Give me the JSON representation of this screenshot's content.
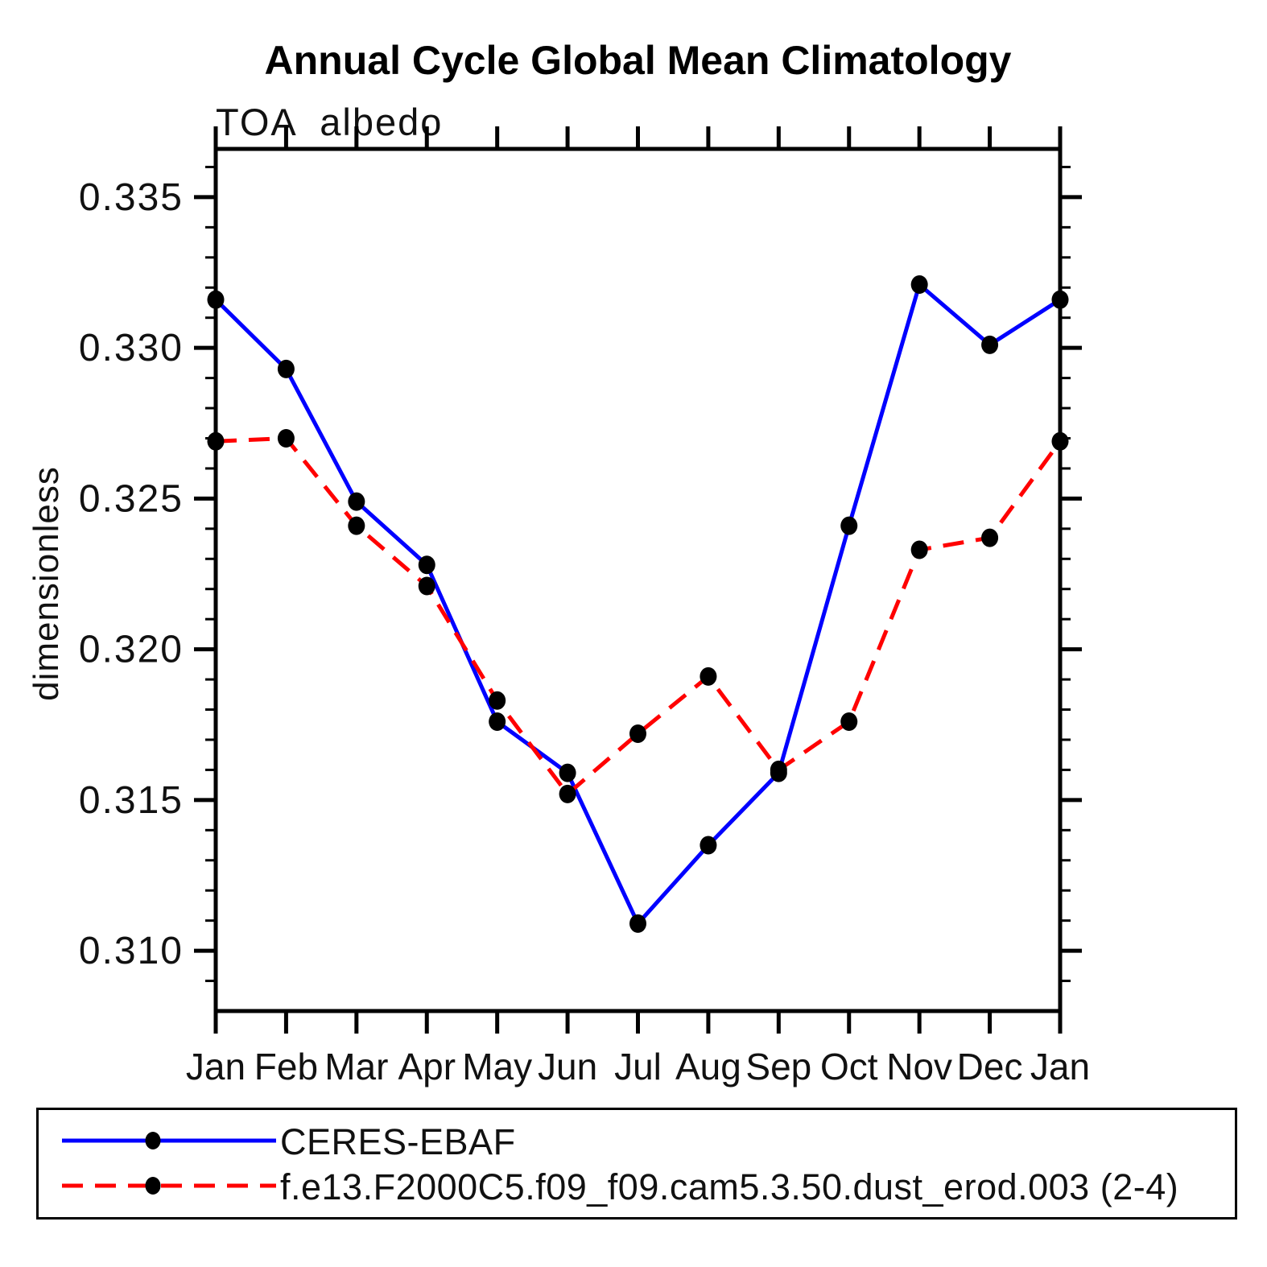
{
  "title": "Annual Cycle Global Mean Climatology",
  "subtitle": "TOA  albedo",
  "ylabel": "dimensionless",
  "chart_data": {
    "type": "line",
    "categories": [
      "Jan",
      "Feb",
      "Mar",
      "Apr",
      "May",
      "Jun",
      "Jul",
      "Aug",
      "Sep",
      "Oct",
      "Nov",
      "Dec",
      "Jan"
    ],
    "series": [
      {
        "name": "CERES-EBAF",
        "color": "#0000ff",
        "line_style": "solid",
        "marker": "filled-black-dot",
        "values": [
          0.3316,
          0.3293,
          0.3249,
          0.3228,
          0.3176,
          0.3159,
          0.3109,
          0.3135,
          0.3159,
          0.3241,
          0.3321,
          0.3301,
          0.3316
        ]
      },
      {
        "name": "f.e13.F2000C5.f09_f09.cam5.3.50.dust_erod.003 (2-4)",
        "color": "#ff0000",
        "line_style": "dashed",
        "marker": "filled-black-dot",
        "values": [
          0.3269,
          0.327,
          0.3241,
          0.3221,
          0.3183,
          0.3152,
          0.3172,
          0.3191,
          0.316,
          0.3176,
          0.3233,
          0.3237,
          0.3269
        ]
      }
    ],
    "xlabel": "",
    "ylim": [
      0.308,
      0.3366
    ],
    "ytick_major": [
      0.31,
      0.315,
      0.32,
      0.325,
      0.33,
      0.335
    ],
    "ytick_labels": [
      "0.310",
      "0.315",
      "0.320",
      "0.325",
      "0.330",
      "0.335"
    ],
    "ytick_minor_step": 0.001,
    "grid": false,
    "legend_position": "bottom-box",
    "marker_color": "#000000",
    "axis_color": "#000000"
  }
}
